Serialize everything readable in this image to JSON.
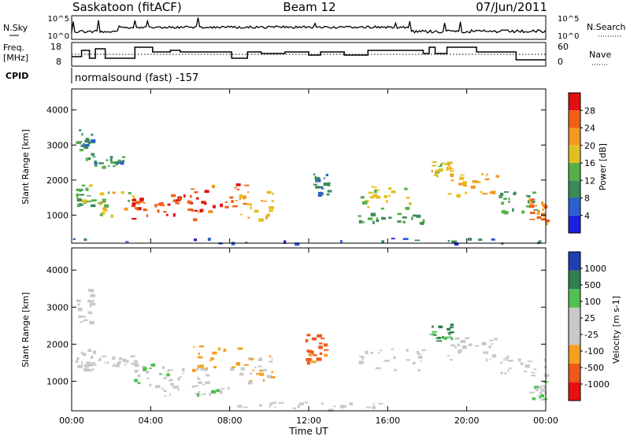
{
  "header": {
    "station": "Saskatoon (fitACF)",
    "beam": "Beam 12",
    "date": "07/Jun/2011"
  },
  "panels": {
    "nsky": {
      "left_label": "N.Sky",
      "right_label": "N.Search",
      "left_ticks": [
        "10^5",
        "10^0"
      ],
      "right_ticks": [
        "10^5",
        "10^0"
      ]
    },
    "freq": {
      "left_label_1": "Freq.",
      "left_label_2": "[MHz]",
      "right_label": "Nave",
      "left_ticks": [
        "18",
        "8"
      ],
      "right_ticks": [
        "60",
        "0"
      ]
    },
    "cpid": {
      "label": "CPID",
      "value": "normalsound (fast) -157"
    }
  },
  "colors": {
    "power": [
      "#1f1fe0",
      "#2a5fd0",
      "#3c8a5a",
      "#56b04a",
      "#e0c020",
      "#f39a20",
      "#f06018",
      "#e01010"
    ],
    "velocity": [
      "#e81010",
      "#f05818",
      "#f5a020",
      "#c8c8c8",
      "#c8c8c8",
      "#50c050",
      "#2f7f50",
      "#1f3fb0"
    ]
  },
  "chart_data": [
    {
      "type": "heatmap",
      "title": "Power",
      "xlabel": "",
      "ylabel": "Slant Range [km]",
      "x_ticks": [
        "00:00",
        "04:00",
        "08:00",
        "12:00",
        "16:00",
        "20:00",
        "00:00"
      ],
      "y_ticks": [
        "1000",
        "2000",
        "3000",
        "4000"
      ],
      "ylim": [
        200,
        4600
      ],
      "colorbar": {
        "label": "Power [dB]",
        "ticks": [
          "4",
          "8",
          "12",
          "16",
          "20",
          "24",
          "28"
        ],
        "range": [
          0,
          32
        ]
      },
      "regions": [
        {
          "t0": 0.1,
          "t1": 1.1,
          "r0": 1300,
          "r1": 1900,
          "v": 14
        },
        {
          "t0": 0.2,
          "t1": 1.0,
          "r0": 2600,
          "r1": 3500,
          "v": 10
        },
        {
          "t0": 1.0,
          "t1": 2.6,
          "r0": 2400,
          "r1": 2700,
          "v": 10
        },
        {
          "t0": 1.3,
          "t1": 3.2,
          "r0": 1000,
          "r1": 1700,
          "v": 18
        },
        {
          "t0": 3.0,
          "t1": 4.6,
          "r0": 900,
          "r1": 1500,
          "v": 28
        },
        {
          "t0": 4.6,
          "t1": 6.8,
          "r0": 900,
          "r1": 1600,
          "v": 30
        },
        {
          "t0": 6.0,
          "t1": 8.8,
          "r0": 1000,
          "r1": 2000,
          "v": 26
        },
        {
          "t0": 8.4,
          "t1": 10.2,
          "r0": 900,
          "r1": 1700,
          "v": 20
        },
        {
          "t0": 12.2,
          "t1": 13.0,
          "r0": 1600,
          "r1": 2200,
          "v": 10
        },
        {
          "t0": 14.4,
          "t1": 17.4,
          "r0": 1200,
          "r1": 1900,
          "v": 16
        },
        {
          "t0": 14.4,
          "t1": 17.8,
          "r0": 800,
          "r1": 1100,
          "v": 12
        },
        {
          "t0": 18.1,
          "t1": 19.3,
          "r0": 2100,
          "r1": 2600,
          "v": 18
        },
        {
          "t0": 19.0,
          "t1": 21.6,
          "r0": 1600,
          "r1": 2200,
          "v": 20
        },
        {
          "t0": 21.6,
          "t1": 23.4,
          "r0": 1100,
          "r1": 1700,
          "v": 12
        },
        {
          "t0": 23.1,
          "t1": 24.0,
          "r0": 800,
          "r1": 1500,
          "v": 24
        },
        {
          "t0": 0.0,
          "t1": 24.0,
          "r0": 200,
          "r1": 360,
          "v": 6
        }
      ]
    },
    {
      "type": "heatmap",
      "title": "Velocity",
      "xlabel": "Time UT",
      "ylabel": "Slant Range [km]",
      "x_ticks": [
        "00:00",
        "04:00",
        "08:00",
        "12:00",
        "16:00",
        "20:00",
        "00:00"
      ],
      "y_ticks": [
        "1000",
        "2000",
        "3000",
        "4000"
      ],
      "ylim": [
        200,
        4600
      ],
      "colorbar": {
        "label": "Velocity [m s-1]",
        "ticks": [
          "1000",
          "500",
          "100",
          "25",
          "-25",
          "-100",
          "-500",
          "-1000"
        ],
        "range": [
          -1200,
          1200
        ]
      },
      "regions": [
        {
          "t0": 0.1,
          "t1": 1.1,
          "r0": 1300,
          "r1": 1900,
          "v": 0
        },
        {
          "t0": 0.2,
          "t1": 1.0,
          "r0": 2600,
          "r1": 3500,
          "v": 0
        },
        {
          "t0": 1.3,
          "t1": 3.2,
          "r0": 1400,
          "r1": 1700,
          "v": 0
        },
        {
          "t0": 3.0,
          "t1": 4.8,
          "r0": 900,
          "r1": 1500,
          "v": 300
        },
        {
          "t0": 4.8,
          "t1": 6.8,
          "r0": 900,
          "r1": 1400,
          "v": -50
        },
        {
          "t0": 6.0,
          "t1": 8.8,
          "r0": 1200,
          "r1": 2000,
          "v": -400
        },
        {
          "t0": 8.4,
          "t1": 10.2,
          "r0": 1000,
          "r1": 1700,
          "v": -300
        },
        {
          "t0": 11.8,
          "t1": 12.8,
          "r0": 1500,
          "r1": 2300,
          "v": -700
        },
        {
          "t0": 4.0,
          "t1": 8.0,
          "r0": 600,
          "r1": 900,
          "v": 150
        },
        {
          "t0": 8.0,
          "t1": 16.0,
          "r0": 250,
          "r1": 450,
          "v": -60
        },
        {
          "t0": 14.4,
          "t1": 17.8,
          "r0": 1300,
          "r1": 1900,
          "v": 0
        },
        {
          "t0": 18.1,
          "t1": 19.3,
          "r0": 2100,
          "r1": 2600,
          "v": 700
        },
        {
          "t0": 19.0,
          "t1": 21.6,
          "r0": 1600,
          "r1": 2200,
          "v": 0
        },
        {
          "t0": 21.6,
          "t1": 24.0,
          "r0": 1100,
          "r1": 1700,
          "v": 0
        },
        {
          "t0": 23.1,
          "t1": 24.0,
          "r0": 500,
          "r1": 1000,
          "v": 200
        }
      ]
    }
  ]
}
